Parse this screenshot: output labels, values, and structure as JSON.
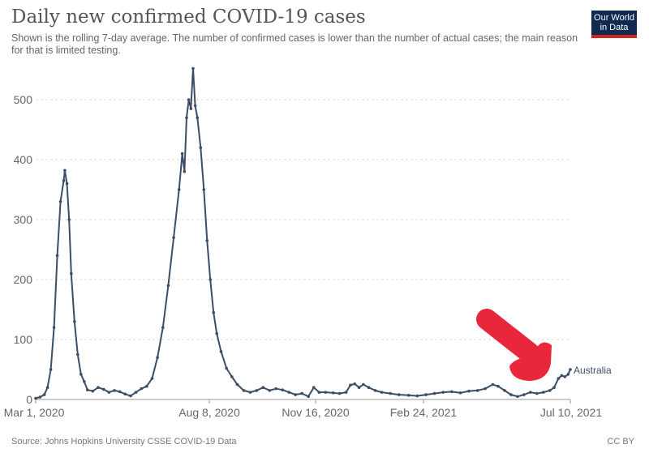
{
  "header": {
    "title": "Daily new confirmed COVID-19 cases",
    "subtitle": "Shown is the rolling 7-day average. The number of confirmed cases is lower than the number of actual cases; the main reason for that is limited testing.",
    "logo_line1": "Our World",
    "logo_line2": "in Data"
  },
  "footer": {
    "source": "Source: Johns Hopkins University CSSE COVID-19 Data",
    "license": "CC BY"
  },
  "colors": {
    "series": "#3c4e66",
    "grid": "#dddddd",
    "annotation": "#e8283a",
    "logo_bg": "#0f2b4f",
    "logo_accent": "#ce261e"
  },
  "chart_data": {
    "type": "line",
    "title": "Daily new confirmed COVID-19 cases",
    "ylim": [
      0,
      550
    ],
    "yticks": [
      0,
      100,
      200,
      300,
      400,
      500
    ],
    "xticks": [
      "Mar 1, 2020",
      "Aug 8, 2020",
      "Nov 16, 2020",
      "Feb 24, 2021",
      "Jul 10, 2021"
    ],
    "grid": true,
    "annotation": "red arrow pointing to the end of the line",
    "series": [
      {
        "name": "Australia",
        "points": [
          [
            "2020-03-01",
            2
          ],
          [
            "2020-03-05",
            4
          ],
          [
            "2020-03-09",
            8
          ],
          [
            "2020-03-12",
            20
          ],
          [
            "2020-03-15",
            50
          ],
          [
            "2020-03-18",
            120
          ],
          [
            "2020-03-21",
            240
          ],
          [
            "2020-03-24",
            330
          ],
          [
            "2020-03-27",
            365
          ],
          [
            "2020-03-28",
            382
          ],
          [
            "2020-03-30",
            360
          ],
          [
            "2020-04-01",
            300
          ],
          [
            "2020-04-03",
            210
          ],
          [
            "2020-04-06",
            130
          ],
          [
            "2020-04-09",
            75
          ],
          [
            "2020-04-12",
            42
          ],
          [
            "2020-04-15",
            30
          ],
          [
            "2020-04-18",
            16
          ],
          [
            "2020-04-23",
            14
          ],
          [
            "2020-04-28",
            20
          ],
          [
            "2020-05-03",
            17
          ],
          [
            "2020-05-08",
            12
          ],
          [
            "2020-05-13",
            15
          ],
          [
            "2020-05-18",
            13
          ],
          [
            "2020-05-23",
            9
          ],
          [
            "2020-05-28",
            6
          ],
          [
            "2020-06-02",
            12
          ],
          [
            "2020-06-07",
            18
          ],
          [
            "2020-06-12",
            22
          ],
          [
            "2020-06-17",
            35
          ],
          [
            "2020-06-22",
            70
          ],
          [
            "2020-06-27",
            120
          ],
          [
            "2020-07-02",
            190
          ],
          [
            "2020-07-07",
            270
          ],
          [
            "2020-07-12",
            350
          ],
          [
            "2020-07-15",
            410
          ],
          [
            "2020-07-17",
            380
          ],
          [
            "2020-07-19",
            470
          ],
          [
            "2020-07-21",
            500
          ],
          [
            "2020-07-23",
            485
          ],
          [
            "2020-07-25",
            552
          ],
          [
            "2020-07-27",
            490
          ],
          [
            "2020-07-29",
            470
          ],
          [
            "2020-08-01",
            420
          ],
          [
            "2020-08-04",
            350
          ],
          [
            "2020-08-07",
            265
          ],
          [
            "2020-08-10",
            200
          ],
          [
            "2020-08-13",
            145
          ],
          [
            "2020-08-16",
            110
          ],
          [
            "2020-08-20",
            80
          ],
          [
            "2020-08-25",
            52
          ],
          [
            "2020-08-30",
            38
          ],
          [
            "2020-09-04",
            25
          ],
          [
            "2020-09-10",
            15
          ],
          [
            "2020-09-16",
            12
          ],
          [
            "2020-09-22",
            15
          ],
          [
            "2020-09-28",
            20
          ],
          [
            "2020-10-04",
            15
          ],
          [
            "2020-10-10",
            18
          ],
          [
            "2020-10-16",
            16
          ],
          [
            "2020-10-22",
            12
          ],
          [
            "2020-10-28",
            8
          ],
          [
            "2020-11-03",
            10
          ],
          [
            "2020-11-09",
            5
          ],
          [
            "2020-11-14",
            20
          ],
          [
            "2020-11-19",
            12
          ],
          [
            "2020-11-25",
            12
          ],
          [
            "2020-12-02",
            11
          ],
          [
            "2020-12-08",
            10
          ],
          [
            "2020-12-14",
            12
          ],
          [
            "2020-12-18",
            24
          ],
          [
            "2020-12-22",
            26
          ],
          [
            "2020-12-26",
            20
          ],
          [
            "2020-12-30",
            25
          ],
          [
            "2021-01-04",
            20
          ],
          [
            "2021-01-10",
            15
          ],
          [
            "2021-01-16",
            12
          ],
          [
            "2021-01-24",
            10
          ],
          [
            "2021-02-01",
            8
          ],
          [
            "2021-02-10",
            7
          ],
          [
            "2021-02-18",
            6
          ],
          [
            "2021-02-26",
            8
          ],
          [
            "2021-03-06",
            10
          ],
          [
            "2021-03-14",
            12
          ],
          [
            "2021-03-22",
            13
          ],
          [
            "2021-03-30",
            11
          ],
          [
            "2021-04-07",
            14
          ],
          [
            "2021-04-15",
            15
          ],
          [
            "2021-04-22",
            18
          ],
          [
            "2021-04-29",
            25
          ],
          [
            "2021-05-04",
            22
          ],
          [
            "2021-05-10",
            15
          ],
          [
            "2021-05-16",
            8
          ],
          [
            "2021-05-22",
            5
          ],
          [
            "2021-05-28",
            8
          ],
          [
            "2021-06-03",
            12
          ],
          [
            "2021-06-09",
            10
          ],
          [
            "2021-06-15",
            12
          ],
          [
            "2021-06-21",
            15
          ],
          [
            "2021-06-25",
            20
          ],
          [
            "2021-06-29",
            35
          ],
          [
            "2021-07-02",
            40
          ],
          [
            "2021-07-05",
            38
          ],
          [
            "2021-07-08",
            42
          ],
          [
            "2021-07-10",
            50
          ]
        ]
      }
    ]
  }
}
